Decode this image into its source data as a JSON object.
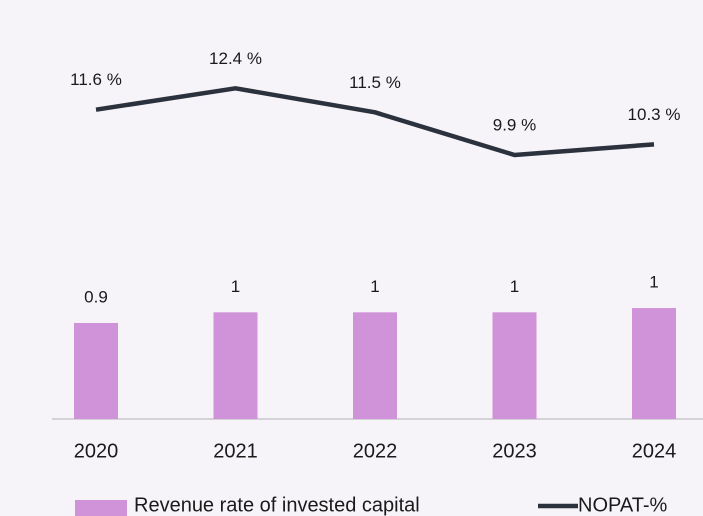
{
  "chart_data": {
    "type": "bar",
    "categories": [
      "2020",
      "2021",
      "2022",
      "2023",
      "2024"
    ],
    "series": [
      {
        "name": "Revenue rate of invested capital",
        "color": "#d092d8",
        "values": [
          0.9,
          1.0,
          1.0,
          1.0,
          1.04
        ],
        "value_labels": [
          "0.9",
          "1",
          "1",
          "1",
          "1"
        ]
      },
      {
        "name": "NOPAT-%",
        "type": "line",
        "axis": "y2",
        "color": "#2b313d",
        "values": [
          11.6,
          12.4,
          11.5,
          9.9,
          10.3
        ],
        "value_labels": [
          "11.6 %",
          "12.4 %",
          "11.5 %",
          "9.9 %",
          "10.3 %"
        ]
      }
    ],
    "ylim": [
      0,
      3.75
    ],
    "y2lim": [
      0,
      15
    ],
    "legend": "bottom"
  }
}
